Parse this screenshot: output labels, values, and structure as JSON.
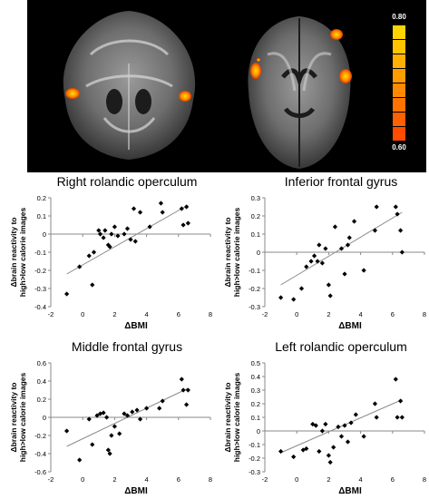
{
  "brain_images": {
    "colorbar": {
      "max_label": "0.80",
      "min_label": "0.60",
      "colors": [
        "#ffd400",
        "#ffc300",
        "#ffb000",
        "#ff9c00",
        "#ff8800",
        "#ff7400",
        "#ff6000",
        "#ff4c00"
      ]
    },
    "blob_color": "#ff8c00"
  },
  "chart_data": [
    {
      "type": "scatter",
      "title": "Right rolandic operculum",
      "xlabel": "ΔBMI",
      "ylabel": "Δbrain reactivity to high>low calorie images",
      "xlim": [
        -2,
        8
      ],
      "ylim": [
        -0.4,
        0.2
      ],
      "xticks": [
        "-2",
        "0",
        "2",
        "4",
        "6",
        "8"
      ],
      "yticks": [
        "-0.4",
        "-0.3",
        "-0.2",
        "-0.1",
        "0",
        "0.1",
        "0.2"
      ],
      "trendline": [
        [
          -1,
          -0.22
        ],
        [
          6.6,
          0.16
        ]
      ],
      "points": [
        [
          -1,
          -0.33
        ],
        [
          -0.2,
          -0.18
        ],
        [
          0.4,
          -0.12
        ],
        [
          0.6,
          -0.28
        ],
        [
          0.7,
          -0.1
        ],
        [
          1.0,
          0.02
        ],
        [
          1.1,
          0.0
        ],
        [
          1.3,
          -0.02
        ],
        [
          1.4,
          0.02
        ],
        [
          1.6,
          -0.06
        ],
        [
          1.7,
          -0.07
        ],
        [
          1.8,
          0.0
        ],
        [
          2.0,
          0.04
        ],
        [
          2.2,
          -0.01
        ],
        [
          2.6,
          0.0
        ],
        [
          2.8,
          0.03
        ],
        [
          3.0,
          -0.03
        ],
        [
          3.2,
          0.14
        ],
        [
          3.3,
          -0.04
        ],
        [
          3.6,
          0.12
        ],
        [
          4.2,
          0.04
        ],
        [
          4.9,
          0.17
        ],
        [
          5.0,
          0.12
        ],
        [
          6.2,
          0.14
        ],
        [
          6.3,
          0.05
        ],
        [
          6.5,
          0.15
        ],
        [
          6.6,
          0.06
        ]
      ]
    },
    {
      "type": "scatter",
      "title": "Inferior frontal gyrus",
      "xlabel": "ΔBMI",
      "ylabel": "Δbrain reactivity to high>low calorie images",
      "xlim": [
        -2,
        8
      ],
      "ylim": [
        -0.3,
        0.3
      ],
      "xticks": [
        "-2",
        "0",
        "2",
        "4",
        "6",
        "8"
      ],
      "yticks": [
        "-0.3",
        "-0.2",
        "-0.1",
        "0",
        "0.1",
        "0.2",
        "0.3"
      ],
      "trendline": [
        [
          -1,
          -0.18
        ],
        [
          6.6,
          0.22
        ]
      ],
      "points": [
        [
          -1,
          -0.25
        ],
        [
          -0.2,
          -0.26
        ],
        [
          0.3,
          -0.2
        ],
        [
          0.6,
          -0.08
        ],
        [
          0.9,
          -0.05
        ],
        [
          1.1,
          -0.02
        ],
        [
          1.3,
          -0.05
        ],
        [
          1.4,
          0.04
        ],
        [
          1.6,
          -0.06
        ],
        [
          1.8,
          0.02
        ],
        [
          2.0,
          -0.18
        ],
        [
          2.1,
          -0.24
        ],
        [
          2.4,
          0.14
        ],
        [
          2.8,
          0.02
        ],
        [
          3.0,
          -0.12
        ],
        [
          3.2,
          0.04
        ],
        [
          3.3,
          0.08
        ],
        [
          3.6,
          0.17
        ],
        [
          4.2,
          -0.1
        ],
        [
          4.9,
          0.12
        ],
        [
          5.0,
          0.25
        ],
        [
          6.2,
          0.25
        ],
        [
          6.3,
          0.21
        ],
        [
          6.5,
          0.12
        ],
        [
          6.6,
          0.0
        ]
      ]
    },
    {
      "type": "scatter",
      "title": "Middle frontal gyrus",
      "xlabel": "ΔBMI",
      "ylabel": "Δbrain reactivity to high>low calorie images",
      "xlim": [
        -2,
        8
      ],
      "ylim": [
        -0.6,
        0.6
      ],
      "xticks": [
        "-2",
        "0",
        "2",
        "4",
        "6",
        "8"
      ],
      "yticks": [
        "-0.6",
        "-0.4",
        "-0.2",
        "0",
        "0.2",
        "0.4",
        "0.6"
      ],
      "trendline": [
        [
          -1,
          -0.32
        ],
        [
          6.6,
          0.32
        ]
      ],
      "points": [
        [
          -1,
          -0.15
        ],
        [
          -0.2,
          -0.47
        ],
        [
          0.4,
          -0.02
        ],
        [
          0.6,
          -0.3
        ],
        [
          0.9,
          0.02
        ],
        [
          1.1,
          0.04
        ],
        [
          1.3,
          0.05
        ],
        [
          1.5,
          0.0
        ],
        [
          1.6,
          -0.36
        ],
        [
          1.7,
          -0.4
        ],
        [
          1.8,
          -0.2
        ],
        [
          2.0,
          -0.1
        ],
        [
          2.3,
          -0.18
        ],
        [
          2.6,
          0.04
        ],
        [
          2.8,
          0.02
        ],
        [
          3.1,
          0.06
        ],
        [
          3.4,
          0.08
        ],
        [
          3.6,
          -0.02
        ],
        [
          4.0,
          0.1
        ],
        [
          4.8,
          0.1
        ],
        [
          5.0,
          0.18
        ],
        [
          6.2,
          0.42
        ],
        [
          6.3,
          0.3
        ],
        [
          6.5,
          0.14
        ],
        [
          6.6,
          0.3
        ]
      ]
    },
    {
      "type": "scatter",
      "title": "Left rolandic operculum",
      "xlabel": "ΔBMI",
      "ylabel": "Δbrain reactivity to high>low calorie images",
      "xlim": [
        -2,
        8
      ],
      "ylim": [
        -0.3,
        0.5
      ],
      "xticks": [
        "-2",
        "0",
        "2",
        "4",
        "6",
        "8"
      ],
      "yticks": [
        "-0.3",
        "-0.2",
        "-0.1",
        "0",
        "0.1",
        "0.2",
        "0.3",
        "0.4",
        "0.5"
      ],
      "trendline": [
        [
          -1,
          -0.16
        ],
        [
          6.6,
          0.23
        ]
      ],
      "points": [
        [
          -1,
          -0.15
        ],
        [
          -0.2,
          -0.19
        ],
        [
          0.4,
          -0.14
        ],
        [
          0.6,
          -0.13
        ],
        [
          1.0,
          0.05
        ],
        [
          1.2,
          0.04
        ],
        [
          1.4,
          -0.15
        ],
        [
          1.6,
          0.0
        ],
        [
          1.8,
          0.05
        ],
        [
          2.0,
          -0.18
        ],
        [
          2.1,
          -0.23
        ],
        [
          2.3,
          -0.12
        ],
        [
          2.6,
          0.03
        ],
        [
          2.8,
          -0.04
        ],
        [
          3.0,
          0.04
        ],
        [
          3.2,
          -0.08
        ],
        [
          3.4,
          0.06
        ],
        [
          3.7,
          0.12
        ],
        [
          4.2,
          -0.04
        ],
        [
          4.9,
          0.2
        ],
        [
          5.0,
          0.1
        ],
        [
          6.2,
          0.38
        ],
        [
          6.3,
          0.1
        ],
        [
          6.5,
          0.22
        ],
        [
          6.6,
          0.1
        ]
      ]
    }
  ]
}
